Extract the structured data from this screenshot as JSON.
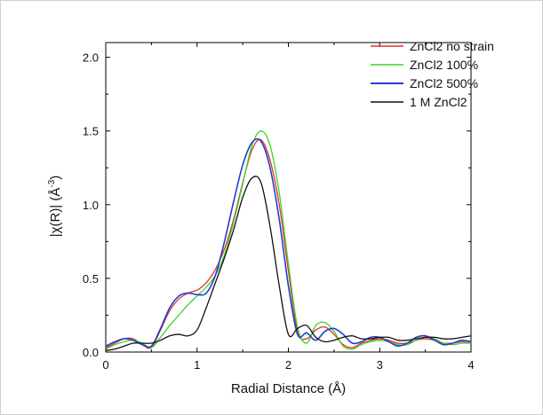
{
  "chart_data": {
    "type": "line",
    "xlabel": "Radial Distance (Å)",
    "ylabel_main": "|χ(R)| (Å",
    "ylabel_sup": "-3",
    "ylabel_close": ")",
    "xlim": [
      0,
      4
    ],
    "ylim": [
      0,
      2.1
    ],
    "xticks": [
      0,
      1,
      2,
      3,
      4
    ],
    "xtick_labels": [
      "0",
      "1",
      "2",
      "3",
      "4"
    ],
    "yticks": [
      0,
      0.5,
      1.0,
      1.5,
      2.0
    ],
    "ytick_labels": [
      "0.0",
      "0.5",
      "1.0",
      "1.5",
      "2.0"
    ],
    "grid": false,
    "legend_position": "top-right",
    "series": [
      {
        "name": "ZnCl2 no strain",
        "color": "#e8302a",
        "x": [
          0,
          0.1,
          0.2,
          0.3,
          0.4,
          0.5,
          0.6,
          0.7,
          0.8,
          0.9,
          1.0,
          1.1,
          1.2,
          1.3,
          1.4,
          1.5,
          1.6,
          1.7,
          1.8,
          1.9,
          2.0,
          2.1,
          2.2,
          2.3,
          2.4,
          2.5,
          2.6,
          2.7,
          2.8,
          2.9,
          3.0,
          3.1,
          3.2,
          3.3,
          3.4,
          3.5,
          3.6,
          3.7,
          3.8,
          3.9,
          4.0
        ],
        "y": [
          0.03,
          0.06,
          0.09,
          0.09,
          0.05,
          0.03,
          0.15,
          0.28,
          0.36,
          0.4,
          0.42,
          0.47,
          0.56,
          0.7,
          0.9,
          1.15,
          1.37,
          1.44,
          1.3,
          1.0,
          0.55,
          0.14,
          0.09,
          0.15,
          0.17,
          0.12,
          0.05,
          0.03,
          0.06,
          0.08,
          0.09,
          0.08,
          0.06,
          0.06,
          0.08,
          0.09,
          0.08,
          0.06,
          0.06,
          0.07,
          0.06
        ]
      },
      {
        "name": "ZnCl2 100%",
        "color": "#3bd42c",
        "x": [
          0,
          0.1,
          0.2,
          0.3,
          0.4,
          0.5,
          0.6,
          0.7,
          0.8,
          0.9,
          1.0,
          1.1,
          1.2,
          1.3,
          1.4,
          1.5,
          1.6,
          1.7,
          1.8,
          1.9,
          2.0,
          2.1,
          2.2,
          2.3,
          2.4,
          2.5,
          2.6,
          2.7,
          2.8,
          2.9,
          3.0,
          3.1,
          3.2,
          3.3,
          3.4,
          3.5,
          3.6,
          3.7,
          3.8,
          3.9,
          4.0
        ],
        "y": [
          0.02,
          0.05,
          0.07,
          0.08,
          0.06,
          0.03,
          0.1,
          0.18,
          0.25,
          0.32,
          0.38,
          0.44,
          0.52,
          0.66,
          0.88,
          1.14,
          1.4,
          1.5,
          1.4,
          1.08,
          0.6,
          0.17,
          0.06,
          0.18,
          0.2,
          0.14,
          0.04,
          0.02,
          0.05,
          0.07,
          0.08,
          0.07,
          0.05,
          0.05,
          0.08,
          0.1,
          0.09,
          0.06,
          0.05,
          0.06,
          0.06
        ]
      },
      {
        "name": "ZnCl2 500%",
        "color": "#1f3fd0",
        "x": [
          0,
          0.1,
          0.2,
          0.3,
          0.4,
          0.5,
          0.6,
          0.7,
          0.8,
          0.9,
          1.0,
          1.1,
          1.2,
          1.3,
          1.4,
          1.5,
          1.6,
          1.7,
          1.8,
          1.9,
          2.0,
          2.1,
          2.2,
          2.3,
          2.4,
          2.5,
          2.6,
          2.7,
          2.8,
          2.9,
          3.0,
          3.1,
          3.2,
          3.3,
          3.4,
          3.5,
          3.6,
          3.7,
          3.8,
          3.9,
          4.0
        ],
        "y": [
          0.04,
          0.07,
          0.09,
          0.08,
          0.05,
          0.04,
          0.16,
          0.3,
          0.38,
          0.4,
          0.39,
          0.4,
          0.52,
          0.75,
          1.02,
          1.27,
          1.42,
          1.43,
          1.25,
          0.9,
          0.45,
          0.12,
          0.13,
          0.08,
          0.14,
          0.16,
          0.12,
          0.06,
          0.07,
          0.1,
          0.1,
          0.07,
          0.04,
          0.06,
          0.1,
          0.11,
          0.08,
          0.05,
          0.06,
          0.08,
          0.07
        ]
      },
      {
        "name": "1 M ZnCl2",
        "color": "#111111",
        "x": [
          0,
          0.1,
          0.2,
          0.3,
          0.4,
          0.5,
          0.6,
          0.7,
          0.8,
          0.9,
          1.0,
          1.1,
          1.2,
          1.3,
          1.4,
          1.5,
          1.6,
          1.7,
          1.8,
          1.9,
          2.0,
          2.1,
          2.2,
          2.3,
          2.4,
          2.5,
          2.6,
          2.7,
          2.8,
          2.9,
          3.0,
          3.1,
          3.2,
          3.3,
          3.4,
          3.5,
          3.6,
          3.7,
          3.8,
          3.9,
          4.0
        ],
        "y": [
          0.01,
          0.02,
          0.04,
          0.06,
          0.06,
          0.06,
          0.08,
          0.11,
          0.12,
          0.11,
          0.15,
          0.3,
          0.47,
          0.64,
          0.83,
          1.05,
          1.18,
          1.15,
          0.85,
          0.45,
          0.12,
          0.16,
          0.18,
          0.1,
          0.07,
          0.08,
          0.1,
          0.11,
          0.09,
          0.09,
          0.1,
          0.1,
          0.08,
          0.08,
          0.09,
          0.1,
          0.1,
          0.09,
          0.09,
          0.1,
          0.11
        ]
      }
    ]
  }
}
